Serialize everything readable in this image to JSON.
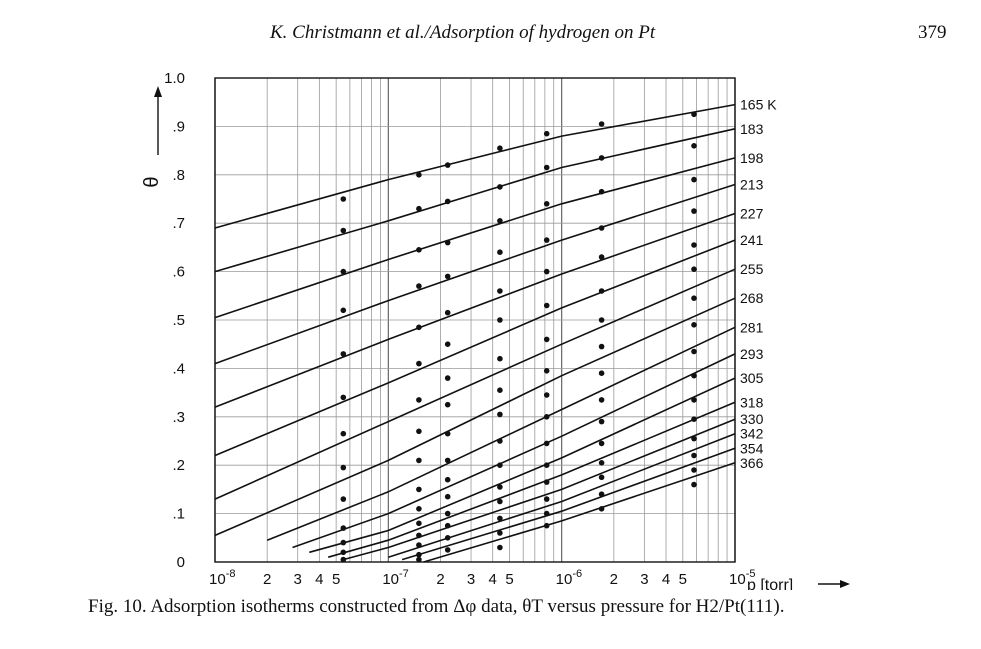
{
  "header": {
    "running_title": "K. Christmann et al./Adsorption of hydrogen on Pt",
    "page_number": "379"
  },
  "caption": {
    "label": "Fig. 10.",
    "text": "Adsorption isotherms constructed from Δφ data, θT versus pressure for H2/Pt(111)."
  },
  "colors": {
    "ink": "#111111",
    "grid": "#9a9a9a",
    "paper": "#ffffff"
  },
  "chart_data": {
    "type": "line",
    "title": "",
    "xlabel": "p [torr]",
    "ylabel": "θ",
    "x_scale": "log",
    "xlim": [
      1e-08,
      1e-05
    ],
    "ylim": [
      0,
      1.0
    ],
    "grid": true,
    "y_ticks": [
      {
        "value": 0,
        "label": "0"
      },
      {
        "value": 0.1,
        "label": ".1"
      },
      {
        "value": 0.2,
        "label": ".2"
      },
      {
        "value": 0.3,
        "label": ".3"
      },
      {
        "value": 0.4,
        "label": ".4"
      },
      {
        "value": 0.5,
        "label": ".5"
      },
      {
        "value": 0.6,
        "label": ".6"
      },
      {
        "value": 0.7,
        "label": ".7"
      },
      {
        "value": 0.8,
        "label": ".8"
      },
      {
        "value": 0.9,
        "label": ".9"
      },
      {
        "value": 1.0,
        "label": "1.0"
      }
    ],
    "x_ticks": [
      {
        "value": 1e-08,
        "label": "10",
        "sup": "-8"
      },
      {
        "value": 2e-08,
        "label": "2"
      },
      {
        "value": 3e-08,
        "label": "3"
      },
      {
        "value": 4e-08,
        "label": "4"
      },
      {
        "value": 5e-08,
        "label": "5"
      },
      {
        "value": 1e-07,
        "label": "10",
        "sup": "-7"
      },
      {
        "value": 2e-07,
        "label": "2"
      },
      {
        "value": 3e-07,
        "label": "3"
      },
      {
        "value": 4e-07,
        "label": "4"
      },
      {
        "value": 5e-07,
        "label": "5"
      },
      {
        "value": 1e-06,
        "label": "10",
        "sup": "-6"
      },
      {
        "value": 2e-06,
        "label": "2"
      },
      {
        "value": 3e-06,
        "label": "3"
      },
      {
        "value": 4e-06,
        "label": "4"
      },
      {
        "value": 5e-06,
        "label": "5"
      },
      {
        "value": 1e-05,
        "label": "10",
        "sup": "-5"
      }
    ],
    "data_pressures": [
      5.5e-08,
      1.5e-07,
      2.2e-07,
      4.4e-07,
      8.2e-07,
      1.7e-06,
      5.8e-06
    ],
    "series": [
      {
        "name": "165 K",
        "x": [
          1e-08,
          1e-07,
          1e-06,
          1e-05
        ],
        "y": [
          0.69,
          0.79,
          0.88,
          0.945
        ],
        "points": [
          0.75,
          0.8,
          0.82,
          0.855,
          0.885,
          0.905,
          0.925
        ]
      },
      {
        "name": "183",
        "x": [
          1e-08,
          1e-07,
          1e-06,
          1e-05
        ],
        "y": [
          0.6,
          0.705,
          0.815,
          0.895
        ],
        "points": [
          0.685,
          0.73,
          0.745,
          0.775,
          0.815,
          0.835,
          0.86
        ]
      },
      {
        "name": "198",
        "x": [
          1e-08,
          1e-07,
          1e-06,
          1e-05
        ],
        "y": [
          0.505,
          0.625,
          0.74,
          0.835
        ],
        "points": [
          0.6,
          0.645,
          0.66,
          0.705,
          0.74,
          0.765,
          0.79
        ]
      },
      {
        "name": "213",
        "x": [
          1e-08,
          1e-07,
          1e-06,
          1e-05
        ],
        "y": [
          0.41,
          0.54,
          0.665,
          0.78
        ],
        "points": [
          0.52,
          0.57,
          0.59,
          0.64,
          0.665,
          0.69,
          0.725
        ]
      },
      {
        "name": "227",
        "x": [
          1e-08,
          1e-07,
          1e-06,
          1e-05
        ],
        "y": [
          0.32,
          0.46,
          0.595,
          0.72
        ],
        "points": [
          0.43,
          0.485,
          0.515,
          0.56,
          0.6,
          0.63,
          0.655
        ]
      },
      {
        "name": "241",
        "x": [
          1e-08,
          1e-07,
          1e-06,
          1e-05
        ],
        "y": [
          0.22,
          0.37,
          0.525,
          0.665
        ],
        "points": [
          0.34,
          0.41,
          0.45,
          0.5,
          0.53,
          0.56,
          0.605
        ]
      },
      {
        "name": "255",
        "x": [
          1e-08,
          1e-07,
          1e-06,
          1e-05
        ],
        "y": [
          0.13,
          0.29,
          0.45,
          0.605
        ],
        "points": [
          0.265,
          0.335,
          0.38,
          0.42,
          0.46,
          0.5,
          0.545
        ]
      },
      {
        "name": "268",
        "x": [
          1e-08,
          1e-07,
          1e-06,
          1e-05
        ],
        "y": [
          0.055,
          0.21,
          0.385,
          0.545
        ],
        "points": [
          0.195,
          0.27,
          0.325,
          0.355,
          0.395,
          0.445,
          0.49
        ]
      },
      {
        "name": "281",
        "x": [
          2e-08,
          1e-07,
          1e-06,
          1e-05
        ],
        "y": [
          0.045,
          0.145,
          0.315,
          0.485
        ],
        "points": [
          0.13,
          0.21,
          0.265,
          0.305,
          0.345,
          0.39,
          0.435
        ]
      },
      {
        "name": "293",
        "x": [
          2.8e-08,
          1e-07,
          1e-06,
          1e-05
        ],
        "y": [
          0.03,
          0.1,
          0.26,
          0.43
        ],
        "points": [
          0.07,
          0.15,
          0.21,
          0.25,
          0.3,
          0.335,
          0.385
        ]
      },
      {
        "name": "305",
        "x": [
          3.5e-08,
          1e-07,
          1e-06,
          1e-05
        ],
        "y": [
          0.02,
          0.065,
          0.215,
          0.38
        ],
        "points": [
          0.04,
          0.11,
          0.17,
          0.2,
          0.245,
          0.29,
          0.335
        ]
      },
      {
        "name": "318",
        "x": [
          4.5e-08,
          1e-07,
          1e-06,
          1e-05
        ],
        "y": [
          0.01,
          0.045,
          0.18,
          0.33
        ],
        "points": [
          0.02,
          0.08,
          0.135,
          0.155,
          0.2,
          0.245,
          0.295
        ]
      },
      {
        "name": "330",
        "x": [
          5.5e-08,
          1e-07,
          1e-06,
          1e-05
        ],
        "y": [
          0.005,
          0.03,
          0.15,
          0.295
        ],
        "points": [
          0.005,
          0.055,
          0.1,
          0.125,
          0.165,
          0.205,
          0.255
        ]
      },
      {
        "name": "342",
        "x": [
          1e-07,
          1e-06,
          1e-05
        ],
        "y": [
          0.01,
          0.125,
          0.265
        ],
        "points": [
          null,
          0.035,
          0.075,
          0.09,
          0.13,
          0.175,
          0.22
        ]
      },
      {
        "name": "354",
        "x": [
          1.2e-07,
          1e-06,
          1e-05
        ],
        "y": [
          0.005,
          0.105,
          0.235
        ],
        "points": [
          null,
          0.015,
          0.05,
          0.06,
          0.1,
          0.14,
          0.19
        ]
      },
      {
        "name": "366",
        "x": [
          1.6e-07,
          1e-06,
          1e-05
        ],
        "y": [
          0.0,
          0.085,
          0.205
        ],
        "points": [
          null,
          0.005,
          0.025,
          0.03,
          0.075,
          0.11,
          0.16
        ]
      }
    ]
  }
}
